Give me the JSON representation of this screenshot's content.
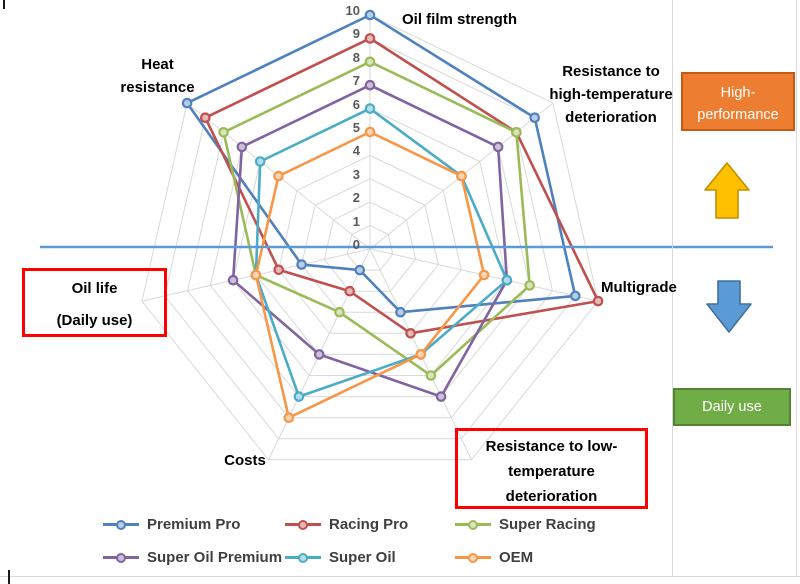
{
  "chart_data": {
    "type": "radar",
    "title": "",
    "categories": [
      "Oil film strength",
      "Resistance to high-temperature deterioration",
      "Multigrade",
      "Resistance to low-temperature deterioration",
      "Costs",
      "Oil life (Daily use)",
      "Heat resistance"
    ],
    "axis_range": [
      0,
      10
    ],
    "tick_step": 1,
    "tick_labels": [
      "0",
      "1",
      "2",
      "3",
      "4",
      "5",
      "6",
      "7",
      "8",
      "9",
      "10"
    ],
    "grid": true,
    "grid_color": "#D9D9D9",
    "legend_position": "bottom",
    "series": [
      {
        "name": "Premium Pro",
        "color": "#4F81BD",
        "marker_fill": "#B9CDE5",
        "values": [
          10,
          9,
          9,
          3,
          1,
          3,
          10
        ]
      },
      {
        "name": "Racing Pro",
        "color": "#C0504D",
        "marker_fill": "#E6B9B8",
        "values": [
          9,
          8,
          10,
          4,
          2,
          4,
          9
        ]
      },
      {
        "name": "Super Racing",
        "color": "#9BBB59",
        "marker_fill": "#D7E4BD",
        "values": [
          8,
          8,
          7,
          6,
          3,
          5,
          8
        ]
      },
      {
        "name": "Super Oil Premium",
        "color": "#8064A2",
        "marker_fill": "#CCC1D9",
        "values": [
          7,
          7,
          6,
          7,
          5,
          6,
          7
        ]
      },
      {
        "name": "Super Oil",
        "color": "#4BACC6",
        "marker_fill": "#B7DEE8",
        "values": [
          6,
          5,
          6,
          5,
          7,
          5,
          6
        ]
      },
      {
        "name": "OEM",
        "color": "#F79646",
        "marker_fill": "#FCD5B5",
        "values": [
          5,
          5,
          5,
          5,
          8,
          5,
          5
        ]
      }
    ]
  },
  "labels": {
    "oil_film": "Oil film strength",
    "heat": {
      "line1": "Heat",
      "line2": "resistance"
    },
    "high_temp": {
      "line1": "Resistance to",
      "line2": "high-temperature",
      "line3": "deterioration"
    },
    "multigrade": "Multigrade",
    "oil_life": {
      "line1": "Oil life",
      "line2": "(Daily use)"
    },
    "costs": "Costs",
    "low_temp": {
      "line1": "Resistance to low-",
      "line2": "temperature",
      "line3": "deterioration"
    }
  },
  "annotations": {
    "high_performance": {
      "line1": "High-",
      "line2": "performance",
      "fill": "#ED7D31",
      "border": "#C55A11"
    },
    "daily_use": {
      "label": "Daily use",
      "fill": "#70AD47",
      "border": "#548235"
    },
    "up_arrow": {
      "fill": "#FFC000",
      "border": "#BF9000"
    },
    "down_arrow": {
      "fill": "#5B9BD5",
      "border": "#41719C"
    },
    "divider_line": {
      "color": "#5B9BD5"
    },
    "callout_border": "#FF0000"
  }
}
